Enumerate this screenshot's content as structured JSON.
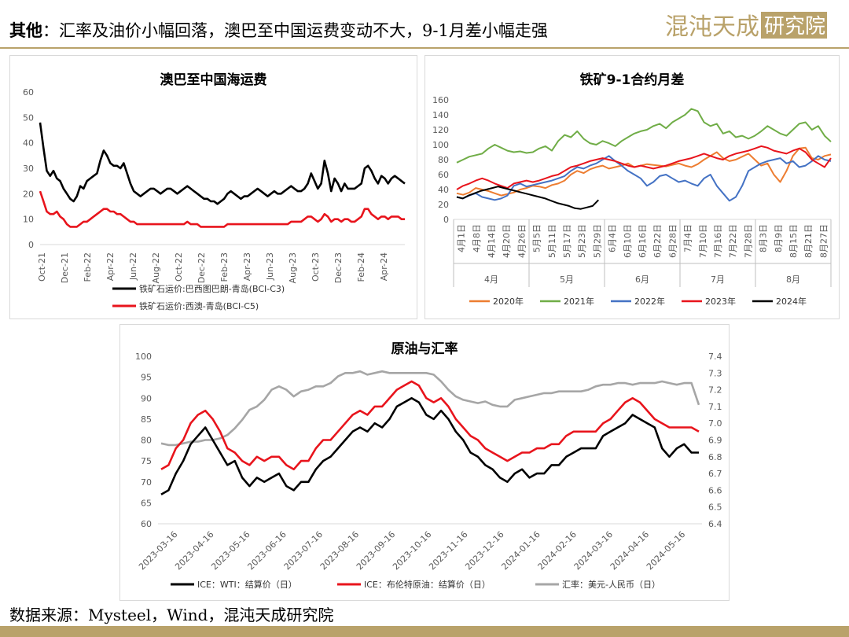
{
  "header": {
    "title_bold": "其他",
    "title_rest": "：汇率及油价小幅回落，澳巴至中国运费变动不大，9-1月差小幅走强",
    "logo_text": "混沌天成研究院",
    "accent_color": "#b9a26a"
  },
  "footer": {
    "source": "数据来源：Mysteel，Wind，混沌天成研究院"
  },
  "chart_data": [
    {
      "type": "line",
      "title": "澳巴至中国海运费",
      "ylim": [
        0,
        60
      ],
      "yticks": [
        "0",
        "10",
        "20",
        "30",
        "40",
        "50",
        "60"
      ],
      "xticks": [
        "Oct-21",
        "Dec-21",
        "Feb-22",
        "Apr-22",
        "Jun-22",
        "Aug-22",
        "Oct-22",
        "Dec-22",
        "Feb-23",
        "Apr-23",
        "Jun-23",
        "Aug-23",
        "Oct-23",
        "Dec-23",
        "Feb-24",
        "Apr-24"
      ],
      "series": [
        {
          "name": "铁矿石运价:巴西图巴朗-青岛(BCI-C3)",
          "color": "#000000",
          "values": [
            48,
            38,
            29,
            27,
            29,
            26,
            25,
            22,
            20,
            18,
            17,
            19,
            23,
            22,
            25,
            26,
            27,
            28,
            33,
            37,
            35,
            32,
            31,
            31,
            30,
            32,
            28,
            24,
            21,
            20,
            19,
            20,
            21,
            22,
            22,
            21,
            20,
            21,
            22,
            22,
            21,
            20,
            21,
            22,
            23,
            22,
            21,
            20,
            19,
            18,
            18,
            17,
            17,
            16,
            17,
            18,
            20,
            21,
            20,
            19,
            18,
            19,
            19,
            20,
            21,
            22,
            21,
            20,
            19,
            20,
            21,
            20,
            20,
            21,
            22,
            23,
            22,
            21,
            21,
            22,
            24,
            28,
            25,
            22,
            24,
            33,
            28,
            21,
            26,
            24,
            21,
            24,
            22,
            22,
            22,
            23,
            24,
            30,
            31,
            29,
            26,
            24,
            27,
            26,
            24,
            26,
            27,
            26,
            25,
            24
          ]
        },
        {
          "name": "铁矿石运价:西澳-青岛(BCI-C5)",
          "color": "#e8141c",
          "values": [
            21,
            17,
            13,
            12,
            12,
            13,
            11,
            10,
            8,
            7,
            7,
            7,
            8,
            9,
            9,
            10,
            11,
            12,
            13,
            14,
            14,
            13,
            13,
            12,
            12,
            11,
            10,
            9,
            9,
            8,
            8,
            8,
            8,
            8,
            8,
            8,
            8,
            8,
            8,
            8,
            8,
            8,
            8,
            8,
            9,
            8,
            8,
            8,
            7,
            7,
            7,
            7,
            7,
            7,
            7,
            7,
            8,
            8,
            8,
            8,
            8,
            8,
            8,
            8,
            8,
            8,
            8,
            8,
            8,
            8,
            8,
            8,
            8,
            8,
            8,
            9,
            9,
            9,
            9,
            10,
            11,
            11,
            10,
            9,
            10,
            12,
            11,
            9,
            10,
            10,
            9,
            10,
            10,
            9,
            9,
            10,
            11,
            14,
            14,
            12,
            11,
            10,
            11,
            11,
            10,
            11,
            11,
            11,
            10,
            10
          ]
        }
      ]
    },
    {
      "type": "line",
      "title": "铁矿9-1合约月差",
      "ylim": [
        0,
        160
      ],
      "yticks": [
        "0",
        "20",
        "40",
        "60",
        "80",
        "100",
        "120",
        "140",
        "160"
      ],
      "xticks": [
        "4月1日",
        "4月8日",
        "4月14日",
        "4月20日",
        "4月26日",
        "5月5日",
        "5月11日",
        "5月17日",
        "5月23日",
        "5月29日",
        "6月4日",
        "6月10日",
        "6月16日",
        "6月22日",
        "6月28日",
        "7月4日",
        "7月10日",
        "7月16日",
        "7月22日",
        "7月28日",
        "8月3日",
        "8月9日",
        "8月15日",
        "8月21日",
        "8月27日"
      ],
      "groups": [
        "4月",
        "5月",
        "6月",
        "7月",
        "8月"
      ],
      "series": [
        {
          "name": "2020年",
          "color": "#ed7d31",
          "values": [
            35,
            33,
            36,
            42,
            40,
            38,
            35,
            32,
            34,
            36,
            40,
            42,
            45,
            44,
            42,
            46,
            48,
            52,
            60,
            65,
            62,
            67,
            70,
            72,
            68,
            70,
            72,
            75,
            70,
            72,
            74,
            73,
            72,
            71,
            73,
            75,
            72,
            70,
            74,
            80,
            85,
            90,
            82,
            78,
            80,
            84,
            88,
            80,
            72,
            75,
            60,
            50,
            65,
            85,
            95,
            96,
            82,
            80,
            85,
            87
          ]
        },
        {
          "name": "2021年",
          "color": "#70ad47",
          "values": [
            76,
            80,
            84,
            86,
            88,
            95,
            100,
            96,
            92,
            90,
            91,
            89,
            90,
            95,
            98,
            92,
            105,
            113,
            110,
            118,
            108,
            102,
            100,
            105,
            102,
            98,
            105,
            110,
            115,
            118,
            120,
            125,
            128,
            122,
            130,
            135,
            140,
            148,
            145,
            130,
            125,
            128,
            115,
            118,
            110,
            112,
            108,
            112,
            118,
            125,
            120,
            115,
            112,
            120,
            128,
            130,
            120,
            125,
            112,
            104
          ]
        },
        {
          "name": "2022年",
          "color": "#4472c4",
          "values": [
            30,
            28,
            32,
            35,
            30,
            28,
            26,
            28,
            32,
            45,
            48,
            44,
            46,
            48,
            50,
            52,
            55,
            58,
            65,
            70,
            68,
            72,
            75,
            80,
            85,
            78,
            72,
            65,
            60,
            55,
            45,
            50,
            58,
            60,
            55,
            50,
            52,
            48,
            45,
            55,
            60,
            45,
            35,
            25,
            30,
            45,
            65,
            70,
            75,
            78,
            80,
            82,
            75,
            78,
            70,
            72,
            78,
            85,
            80,
            78
          ]
        },
        {
          "name": "2023年",
          "color": "#e8141c",
          "values": [
            40,
            45,
            48,
            52,
            55,
            52,
            48,
            45,
            42,
            48,
            50,
            52,
            50,
            52,
            55,
            58,
            60,
            65,
            70,
            72,
            75,
            78,
            80,
            82,
            80,
            78,
            75,
            72,
            70,
            72,
            70,
            68,
            70,
            72,
            75,
            78,
            80,
            82,
            85,
            88,
            85,
            82,
            80,
            85,
            88,
            90,
            92,
            95,
            98,
            96,
            92,
            90,
            88,
            92,
            95,
            90,
            80,
            75,
            70,
            82
          ]
        },
        {
          "name": "2024年",
          "color": "#000000",
          "values": [
            30,
            28,
            32,
            35,
            38,
            40,
            42,
            44,
            42,
            40,
            38,
            36,
            34,
            32,
            30,
            28,
            25,
            22,
            20,
            18,
            15,
            14,
            16,
            18,
            26
          ]
        }
      ]
    },
    {
      "type": "line",
      "title": "原油与汇率",
      "ylim": [
        60,
        100
      ],
      "y2lim": [
        6.4,
        7.4
      ],
      "yticks": [
        "60",
        "65",
        "70",
        "75",
        "80",
        "85",
        "90",
        "95",
        "100"
      ],
      "y2ticks": [
        "6.4",
        "6.5",
        "6.6",
        "6.7",
        "6.8",
        "6.9",
        "7.0",
        "7.1",
        "7.2",
        "7.3",
        "7.4"
      ],
      "xticks": [
        "2023-03-16",
        "2023-04-16",
        "2023-05-16",
        "2023-06-16",
        "2023-07-16",
        "2023-08-16",
        "2023-09-16",
        "2023-10-16",
        "2023-11-16",
        "2023-12-16",
        "2024-01-16",
        "2024-02-16",
        "2024-03-16",
        "2024-04-16",
        "2024-05-16"
      ],
      "series": [
        {
          "name": "ICE：WTI：结算价（日）",
          "color": "#000000",
          "axis": "left",
          "values": [
            67,
            68,
            72,
            75,
            79,
            81,
            83,
            80,
            77,
            74,
            75,
            71,
            69,
            71,
            70,
            71,
            72,
            69,
            68,
            70,
            70,
            73,
            75,
            76,
            78,
            80,
            82,
            83,
            82,
            84,
            83,
            85,
            88,
            89,
            90,
            89,
            86,
            85,
            87,
            85,
            82,
            80,
            77,
            76,
            74,
            73,
            71,
            70,
            72,
            73,
            71,
            72,
            72,
            74,
            74,
            76,
            77,
            78,
            78,
            78,
            81,
            82,
            83,
            84,
            86,
            85,
            84,
            83,
            78,
            76,
            78,
            79,
            77,
            77
          ]
        },
        {
          "name": "ICE：布伦特原油：结算价（日）",
          "color": "#e8141c",
          "axis": "left",
          "values": [
            73,
            74,
            78,
            80,
            84,
            86,
            87,
            85,
            82,
            78,
            77,
            75,
            74,
            76,
            75,
            76,
            76,
            74,
            73,
            75,
            75,
            78,
            80,
            80,
            82,
            84,
            86,
            87,
            86,
            88,
            88,
            90,
            92,
            93,
            94,
            93,
            90,
            89,
            90,
            88,
            85,
            83,
            81,
            80,
            78,
            77,
            76,
            75,
            76,
            77,
            77,
            78,
            78,
            79,
            79,
            81,
            82,
            82,
            82,
            82,
            84,
            85,
            87,
            89,
            90,
            89,
            87,
            85,
            84,
            83,
            83,
            83,
            83,
            82
          ]
        },
        {
          "name": "汇率：美元-人民币（日）",
          "color": "#a6a6a6",
          "axis": "right",
          "values": [
            6.88,
            6.87,
            6.87,
            6.88,
            6.89,
            6.89,
            6.9,
            6.9,
            6.91,
            6.93,
            6.97,
            7.02,
            7.08,
            7.1,
            7.14,
            7.2,
            7.22,
            7.2,
            7.16,
            7.19,
            7.2,
            7.22,
            7.22,
            7.24,
            7.28,
            7.3,
            7.3,
            7.31,
            7.29,
            7.3,
            7.31,
            7.3,
            7.3,
            7.3,
            7.3,
            7.3,
            7.3,
            7.29,
            7.25,
            7.2,
            7.16,
            7.14,
            7.13,
            7.12,
            7.13,
            7.11,
            7.1,
            7.1,
            7.14,
            7.15,
            7.16,
            7.17,
            7.18,
            7.18,
            7.19,
            7.19,
            7.19,
            7.19,
            7.2,
            7.22,
            7.23,
            7.23,
            7.24,
            7.24,
            7.23,
            7.24,
            7.24,
            7.24,
            7.25,
            7.24,
            7.23,
            7.24,
            7.24,
            7.11
          ]
        }
      ]
    }
  ]
}
